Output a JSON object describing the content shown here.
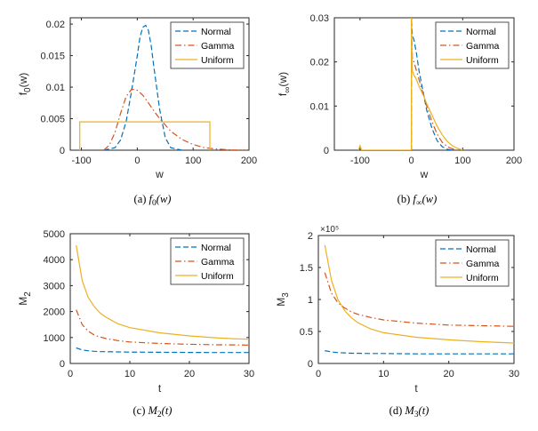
{
  "colors": {
    "normal": "#0072BD",
    "gamma": "#D95319",
    "uniform": "#EDB120"
  },
  "chart_data": [
    {
      "type": "line",
      "caption": "(a)  f0(w)",
      "caption_math": "f0(w)",
      "xlabel": "w",
      "ylabel": "f0(w)",
      "xlim": [
        -120,
        200
      ],
      "ylim": [
        0,
        0.021
      ],
      "xticks": [
        -100,
        0,
        100,
        200
      ],
      "yticks": [
        0,
        0.005,
        0.01,
        0.015,
        0.02
      ],
      "ytick_labels": [
        "0",
        "0.005",
        "0.01",
        "0.015",
        "0.02"
      ],
      "legend": "top-right",
      "series": [
        {
          "name": "Normal",
          "style": "dashed",
          "color": "#0072BD",
          "x": [
            -60,
            -40,
            -30,
            -20,
            -10,
            0,
            5,
            10,
            15,
            20,
            25,
            30,
            40,
            50,
            60,
            80
          ],
          "y": [
            0,
            0.0004,
            0.0016,
            0.0045,
            0.0095,
            0.015,
            0.018,
            0.0195,
            0.0198,
            0.019,
            0.0165,
            0.013,
            0.0065,
            0.002,
            0.0004,
            0
          ]
        },
        {
          "name": "Gamma",
          "style": "dashdot",
          "color": "#D95319",
          "x": [
            -60,
            -50,
            -40,
            -30,
            -20,
            -10,
            0,
            10,
            20,
            30,
            40,
            60,
            80,
            100,
            120,
            140,
            160,
            180,
            195
          ],
          "y": [
            0,
            0.0008,
            0.0028,
            0.0058,
            0.0085,
            0.0097,
            0.0095,
            0.0087,
            0.0075,
            0.0062,
            0.005,
            0.003,
            0.0017,
            0.0009,
            0.0004,
            0.0002,
            8e-05,
            2e-05,
            0
          ]
        },
        {
          "name": "Uniform",
          "style": "solid",
          "color": "#EDB120",
          "x": [
            -103,
            -103,
            130,
            130
          ],
          "y": [
            0,
            0.0045,
            0.0045,
            0
          ]
        }
      ]
    },
    {
      "type": "line",
      "caption": "(b)  f∞(w)",
      "caption_math": "f∞(w)",
      "xlabel": "w",
      "ylabel": "f∞(w)",
      "xlim": [
        -150,
        200
      ],
      "ylim": [
        0,
        0.03
      ],
      "xticks": [
        -100,
        0,
        100,
        200
      ],
      "yticks": [
        0,
        0.01,
        0.02,
        0.03
      ],
      "ytick_labels": [
        "0",
        "0.01",
        "0.02",
        "0.03"
      ],
      "legend": "top-right",
      "series": [
        {
          "name": "Normal",
          "style": "dashed",
          "color": "#0072BD",
          "x": [
            -1,
            0,
            0,
            2,
            5,
            10,
            15,
            20,
            25,
            30,
            40,
            50,
            60,
            70,
            80
          ],
          "y": [
            0,
            0,
            0.03,
            0.026,
            0.025,
            0.022,
            0.018,
            0.015,
            0.012,
            0.009,
            0.005,
            0.0022,
            0.0008,
            0.0002,
            0
          ]
        },
        {
          "name": "Gamma",
          "style": "dashdot",
          "color": "#D95319",
          "x": [
            -1,
            0,
            0,
            2,
            5,
            10,
            15,
            20,
            25,
            30,
            40,
            50,
            60,
            70,
            80,
            90
          ],
          "y": [
            0,
            0,
            0.03,
            0.021,
            0.02,
            0.018,
            0.016,
            0.014,
            0.012,
            0.01,
            0.0065,
            0.0037,
            0.0018,
            0.0008,
            0.0003,
            0
          ]
        },
        {
          "name": "Uniform",
          "style": "solid",
          "color": "#EDB120",
          "x": [
            -103,
            -100,
            -97,
            -2,
            0,
            0,
            2,
            5,
            10,
            15,
            20,
            25,
            30,
            40,
            50,
            60,
            70,
            80,
            90,
            100
          ],
          "y": [
            0,
            0.001,
            0,
            0,
            0,
            0.03,
            0.018,
            0.017,
            0.016,
            0.0145,
            0.0132,
            0.012,
            0.0105,
            0.008,
            0.0055,
            0.0035,
            0.002,
            0.001,
            0.0004,
            0
          ]
        }
      ]
    },
    {
      "type": "line",
      "caption": "(c)  M2(t)",
      "caption_math": "M2(t)",
      "xlabel": "t",
      "ylabel": "M2",
      "xlim": [
        0,
        30
      ],
      "ylim": [
        0,
        5000
      ],
      "xticks": [
        0,
        10,
        20,
        30
      ],
      "yticks": [
        0,
        1000,
        2000,
        3000,
        4000,
        5000
      ],
      "ytick_labels": [
        "0",
        "1000",
        "2000",
        "3000",
        "4000",
        "5000"
      ],
      "legend": "top-right",
      "series": [
        {
          "name": "Normal",
          "style": "dashed",
          "color": "#0072BD",
          "x": [
            1,
            2,
            3,
            4,
            5,
            6,
            8,
            10,
            15,
            20,
            25,
            30
          ],
          "y": [
            600,
            520,
            490,
            470,
            460,
            455,
            445,
            440,
            430,
            425,
            420,
            420
          ]
        },
        {
          "name": "Gamma",
          "style": "dashdot",
          "color": "#D95319",
          "x": [
            1,
            2,
            3,
            4,
            5,
            6,
            8,
            10,
            15,
            20,
            25,
            30
          ],
          "y": [
            2070,
            1500,
            1250,
            1100,
            1020,
            960,
            880,
            830,
            770,
            740,
            720,
            710
          ]
        },
        {
          "name": "Uniform",
          "style": "solid",
          "color": "#EDB120",
          "x": [
            1,
            2,
            3,
            4,
            5,
            6,
            8,
            10,
            15,
            20,
            25,
            30
          ],
          "y": [
            4550,
            3200,
            2550,
            2200,
            1950,
            1780,
            1530,
            1380,
            1180,
            1060,
            980,
            930
          ]
        }
      ]
    },
    {
      "type": "line",
      "caption": "(d)  M3(t)",
      "caption_math": "M3(t)",
      "xlabel": "t",
      "ylabel": "M3",
      "exponent_label": "×10⁵",
      "xlim": [
        0,
        30
      ],
      "ylim": [
        0,
        2
      ],
      "xticks": [
        0,
        10,
        20,
        30
      ],
      "yticks": [
        0,
        0.5,
        1,
        1.5,
        2
      ],
      "ytick_labels": [
        "0",
        "0.5",
        "1",
        "1.5",
        "2"
      ],
      "legend": "top-right",
      "series": [
        {
          "name": "Normal",
          "style": "dashed",
          "color": "#0072BD",
          "x": [
            1,
            2,
            3,
            4,
            5,
            6,
            8,
            10,
            15,
            20,
            25,
            30
          ],
          "y": [
            0.2,
            0.18,
            0.17,
            0.165,
            0.16,
            0.16,
            0.155,
            0.155,
            0.15,
            0.15,
            0.15,
            0.15
          ]
        },
        {
          "name": "Gamma",
          "style": "dashdot",
          "color": "#D95319",
          "x": [
            1,
            2,
            3,
            4,
            5,
            6,
            8,
            10,
            15,
            20,
            25,
            30
          ],
          "y": [
            1.42,
            1.1,
            0.95,
            0.87,
            0.81,
            0.77,
            0.72,
            0.68,
            0.63,
            0.6,
            0.59,
            0.58
          ]
        },
        {
          "name": "Uniform",
          "style": "solid",
          "color": "#EDB120",
          "x": [
            1,
            2,
            3,
            4,
            5,
            6,
            8,
            10,
            15,
            20,
            25,
            30
          ],
          "y": [
            1.85,
            1.3,
            1.0,
            0.83,
            0.72,
            0.64,
            0.54,
            0.48,
            0.41,
            0.37,
            0.34,
            0.32
          ]
        }
      ]
    }
  ]
}
